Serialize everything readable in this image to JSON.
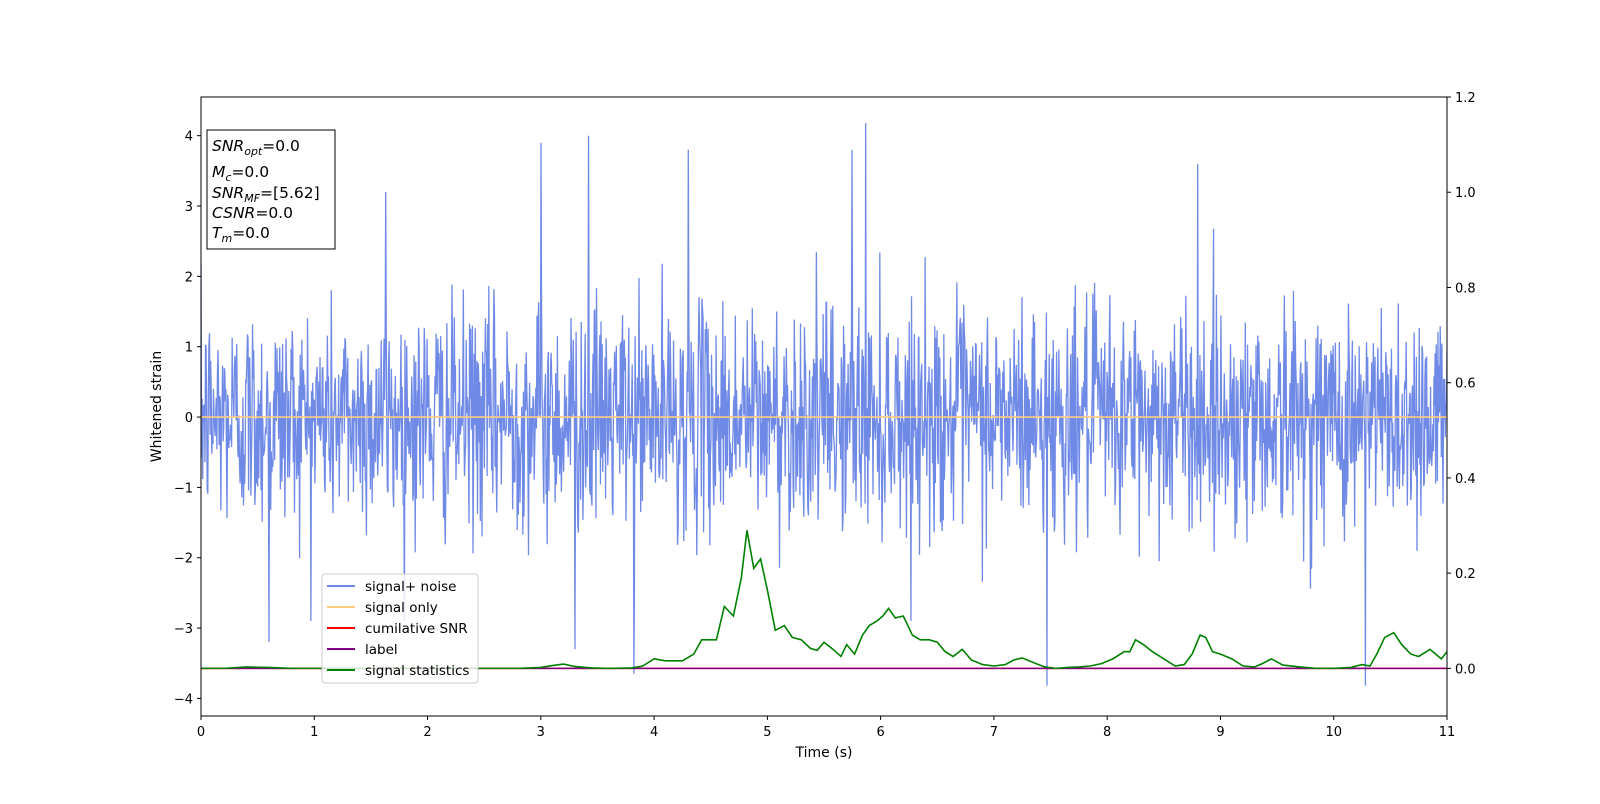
{
  "chart_data": {
    "type": "line",
    "xlabel": "Time (s)",
    "ylabel": "Whitened strain",
    "xlim": [
      0,
      11
    ],
    "ylim": [
      -4.25,
      4.55
    ],
    "y2lim": [
      -0.1,
      1.2
    ],
    "xticks": [
      "0",
      "1",
      "2",
      "3",
      "4",
      "5",
      "6",
      "7",
      "8",
      "9",
      "10",
      "11"
    ],
    "yticks": [
      "−4",
      "−3",
      "−2",
      "−1",
      "0",
      "1",
      "2",
      "3",
      "4"
    ],
    "y2ticks": [
      "0.0",
      "0.2",
      "0.4",
      "0.6",
      "0.8",
      "1.0",
      "1.2"
    ],
    "grid": false,
    "legend_position": "lower-left",
    "info_box": {
      "lines": [
        {
          "main": "SNR",
          "sub": "opt",
          "rest": "=0.0"
        },
        {
          "main": "M",
          "sub": "c",
          "rest": "=0.0"
        },
        {
          "main": "SNR",
          "sub": "MF",
          "rest": "=[5.62]"
        },
        {
          "main": "CSNR",
          "sub": "",
          "rest": "=0.0"
        },
        {
          "main": "T",
          "sub": "m",
          "rest": "=0.0"
        }
      ]
    },
    "series": [
      {
        "name": "signal+ noise",
        "color": "#6f8ae6",
        "axis": "left",
        "kind": "noise",
        "description_stats": {
          "n_points": 2200,
          "typical_range": [
            -2.2,
            2.2
          ],
          "peaks_max": 4.18,
          "peaks_min": -3.82,
          "spikes": [
            [
              3.0,
              3.9
            ],
            [
              3.42,
              4.0
            ],
            [
              4.3,
              3.8
            ],
            [
              5.75,
              3.8
            ],
            [
              5.87,
              4.18
            ],
            [
              8.8,
              3.6
            ],
            [
              1.63,
              3.2
            ],
            [
              3.82,
              -3.65
            ],
            [
              7.47,
              -3.82
            ],
            [
              10.28,
              -3.82
            ],
            [
              0.6,
              -3.2
            ],
            [
              3.3,
              -3.3
            ]
          ]
        }
      },
      {
        "name": "signal only",
        "color": "#ffcc80",
        "axis": "left",
        "x": [
          0,
          11
        ],
        "y": [
          0,
          0
        ]
      },
      {
        "name": "cumilative SNR",
        "color": "#ff0000",
        "axis": "right",
        "x": [
          0,
          11
        ],
        "y": [
          0,
          0
        ]
      },
      {
        "name": "label",
        "color": "#800080",
        "axis": "right",
        "x": [
          0,
          11
        ],
        "y": [
          0,
          0
        ]
      },
      {
        "name": "signal statistics",
        "color": "#008000",
        "axis": "right",
        "x": [
          0,
          0.2,
          0.4,
          0.6,
          0.8,
          1.0,
          1.2,
          1.4,
          1.6,
          1.8,
          2.0,
          2.2,
          2.4,
          2.6,
          2.8,
          3.0,
          3.1,
          3.2,
          3.3,
          3.45,
          3.6,
          3.8,
          3.9,
          4.0,
          4.1,
          4.25,
          4.35,
          4.42,
          4.55,
          4.62,
          4.7,
          4.77,
          4.82,
          4.88,
          4.94,
          5.0,
          5.07,
          5.15,
          5.22,
          5.3,
          5.38,
          5.44,
          5.5,
          5.58,
          5.65,
          5.7,
          5.77,
          5.84,
          5.9,
          5.97,
          6.02,
          6.07,
          6.13,
          6.2,
          6.28,
          6.35,
          6.43,
          6.5,
          6.57,
          6.64,
          6.72,
          6.8,
          6.9,
          7.0,
          7.1,
          7.18,
          7.25,
          7.35,
          7.45,
          7.55,
          7.65,
          7.75,
          7.85,
          7.95,
          8.05,
          8.15,
          8.2,
          8.25,
          8.32,
          8.4,
          8.5,
          8.6,
          8.68,
          8.75,
          8.82,
          8.87,
          8.93,
          9.0,
          9.1,
          9.2,
          9.3,
          9.37,
          9.45,
          9.55,
          9.7,
          9.85,
          10.0,
          10.15,
          10.25,
          10.32,
          10.38,
          10.45,
          10.53,
          10.6,
          10.68,
          10.75,
          10.85,
          10.95,
          11.0
        ],
        "y": [
          0.0,
          0.0,
          0.003,
          0.002,
          0.0,
          0.0,
          0.0,
          0.0,
          0.0,
          0.0,
          0.0,
          0.0,
          0.0,
          0.0,
          0.0,
          0.002,
          0.006,
          0.009,
          0.004,
          0.001,
          0.0,
          0.001,
          0.005,
          0.02,
          0.016,
          0.016,
          0.03,
          0.06,
          0.06,
          0.13,
          0.11,
          0.19,
          0.29,
          0.21,
          0.23,
          0.165,
          0.08,
          0.09,
          0.065,
          0.06,
          0.042,
          0.038,
          0.055,
          0.04,
          0.025,
          0.05,
          0.03,
          0.07,
          0.09,
          0.1,
          0.11,
          0.126,
          0.106,
          0.11,
          0.07,
          0.06,
          0.06,
          0.055,
          0.035,
          0.025,
          0.04,
          0.018,
          0.008,
          0.005,
          0.008,
          0.018,
          0.022,
          0.012,
          0.003,
          0.0,
          0.002,
          0.003,
          0.005,
          0.01,
          0.02,
          0.035,
          0.035,
          0.06,
          0.05,
          0.035,
          0.02,
          0.005,
          0.008,
          0.03,
          0.07,
          0.065,
          0.035,
          0.03,
          0.02,
          0.005,
          0.003,
          0.01,
          0.02,
          0.007,
          0.003,
          0.0,
          0.0,
          0.002,
          0.008,
          0.005,
          0.03,
          0.065,
          0.075,
          0.05,
          0.03,
          0.025,
          0.04,
          0.02,
          0.035
        ]
      }
    ]
  }
}
